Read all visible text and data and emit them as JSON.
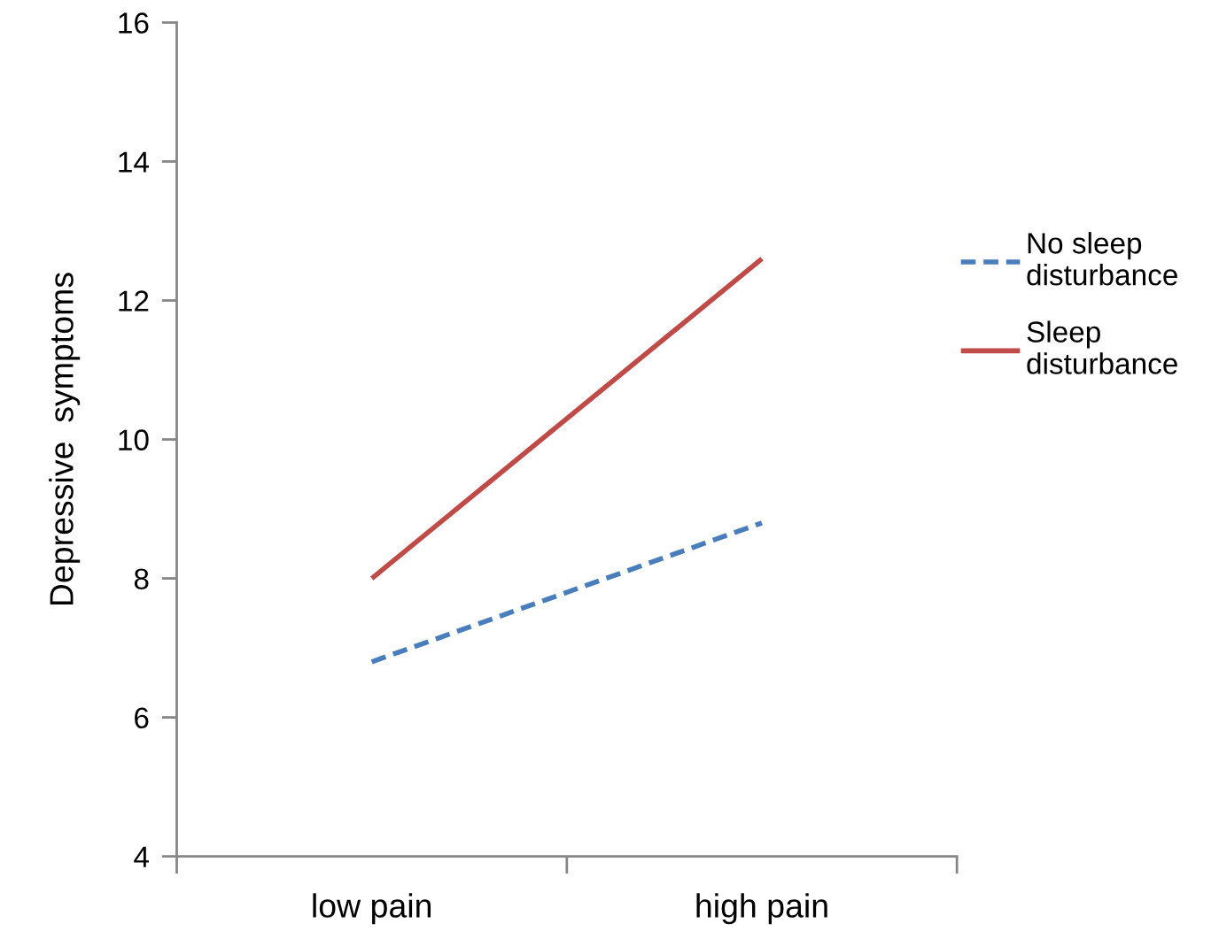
{
  "chart_data": {
    "type": "line",
    "ylabel": "Depressive  symptoms",
    "categories": [
      "low pain",
      "high pain"
    ],
    "series": [
      {
        "name": "No sleep\ndisturbance",
        "color": "#4a7ebb",
        "values": [
          6.8,
          8.8
        ],
        "line_style": "dashed"
      },
      {
        "name": "Sleep\ndisturbance",
        "color": "#be4b48",
        "values": [
          8.0,
          12.6
        ],
        "line_style": "solid"
      }
    ],
    "ylim": [
      4,
      16
    ],
    "yticks": [
      4,
      6,
      8,
      10,
      12,
      14,
      16
    ],
    "grid": false,
    "legend": "right",
    "marker": "none"
  }
}
